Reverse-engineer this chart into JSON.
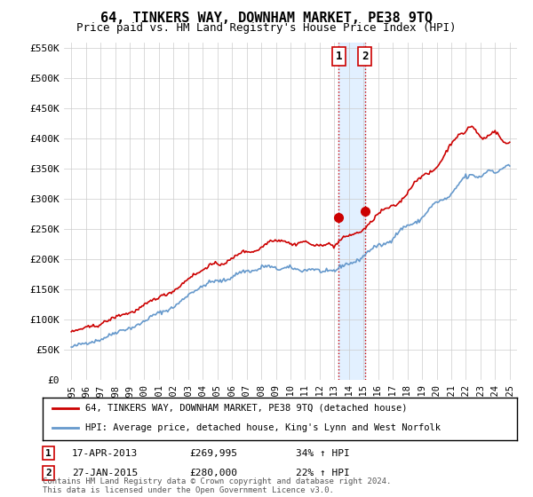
{
  "title": "64, TINKERS WAY, DOWNHAM MARKET, PE38 9TQ",
  "subtitle": "Price paid vs. HM Land Registry's House Price Index (HPI)",
  "legend_line1": "64, TINKERS WAY, DOWNHAM MARKET, PE38 9TQ (detached house)",
  "legend_line2": "HPI: Average price, detached house, King's Lynn and West Norfolk",
  "footnote": "Contains HM Land Registry data © Crown copyright and database right 2024.\nThis data is licensed under the Open Government Licence v3.0.",
  "sale1_date": "17-APR-2013",
  "sale1_price": "£269,995",
  "sale1_hpi": "34% ↑ HPI",
  "sale2_date": "27-JAN-2015",
  "sale2_price": "£280,000",
  "sale2_hpi": "22% ↑ HPI",
  "red_color": "#cc0000",
  "blue_color": "#6699cc",
  "highlight_box_color": "#ddeeff",
  "sale1_x": 2013.29,
  "sale2_x": 2015.08,
  "sale1_y": 269995,
  "sale2_y": 280000,
  "ylim_min": 0,
  "ylim_max": 560000,
  "xlim_min": 1994.5,
  "xlim_max": 2025.5,
  "yticks": [
    0,
    50000,
    100000,
    150000,
    200000,
    250000,
    300000,
    350000,
    400000,
    450000,
    500000,
    550000
  ],
  "ytick_labels": [
    "£0",
    "£50K",
    "£100K",
    "£150K",
    "£200K",
    "£250K",
    "£300K",
    "£350K",
    "£400K",
    "£450K",
    "£500K",
    "£550K"
  ],
  "xticks": [
    1995,
    1996,
    1997,
    1998,
    1999,
    2000,
    2001,
    2002,
    2003,
    2004,
    2005,
    2006,
    2007,
    2008,
    2009,
    2010,
    2011,
    2012,
    2013,
    2014,
    2015,
    2016,
    2017,
    2018,
    2019,
    2020,
    2021,
    2022,
    2023,
    2024,
    2025
  ]
}
